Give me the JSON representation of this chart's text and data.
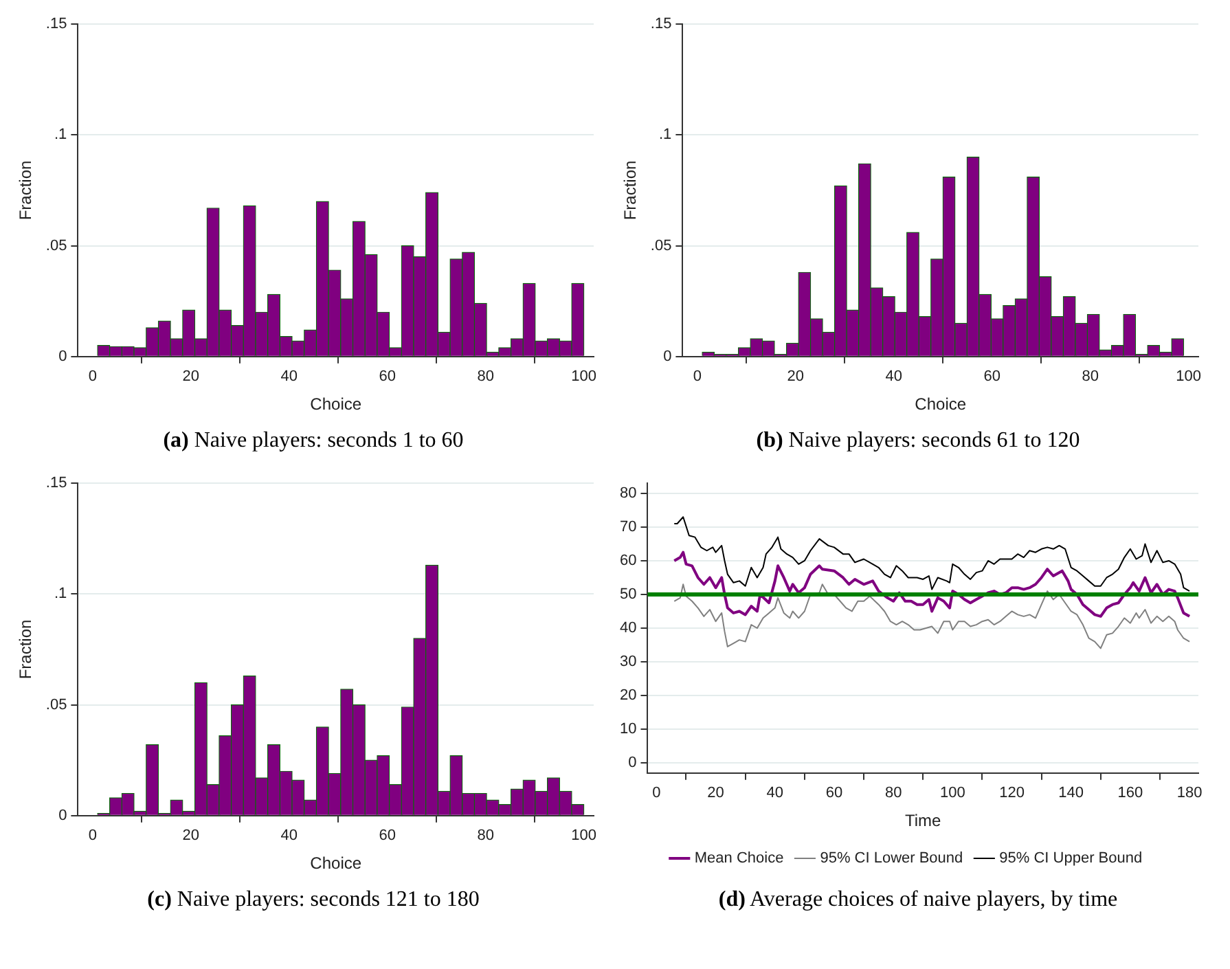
{
  "chart_data": [
    {
      "type": "histogram",
      "title": "(a) Naive players: seconds 1 to 60",
      "xlabel": "Choice",
      "ylabel": "Fraction",
      "bins": [
        1,
        3.475,
        5.95,
        8.425,
        10.9,
        13.375,
        15.85,
        18.325,
        20.8,
        23.275,
        25.75,
        28.225,
        30.7,
        33.175,
        35.65,
        38.125,
        40.6,
        43.075,
        45.55,
        48.025,
        50.5,
        52.975,
        55.45,
        57.925,
        60.4,
        62.875,
        65.35,
        67.825,
        70.3,
        72.775,
        75.25,
        77.725,
        80.2,
        82.675,
        85.15,
        87.625,
        90.1,
        92.575,
        95.05,
        97.525,
        100
      ],
      "values": [
        0.005,
        0.0045,
        0.0045,
        0.004,
        0.013,
        0.016,
        0.008,
        0.021,
        0.008,
        0.067,
        0.021,
        0.014,
        0.068,
        0.02,
        0.028,
        0.009,
        0.007,
        0.012,
        0.07,
        0.039,
        0.026,
        0.061,
        0.046,
        0.02,
        0.004,
        0.05,
        0.045,
        0.074,
        0.011,
        0.044,
        0.047,
        0.024,
        0.002,
        0.004,
        0.008,
        0.033,
        0.007,
        0.008,
        0.007,
        0.033
      ],
      "color": "#800080",
      "xlim": [
        -3,
        102
      ],
      "xticks": [
        0,
        20,
        40,
        60,
        80,
        100
      ],
      "ylim": [
        0,
        0.15
      ],
      "yticks": [
        0,
        {
          "value": 0.05,
          "label": ".05"
        },
        {
          "value": 0.1,
          "label": ".1"
        },
        {
          "value": 0.15,
          "label": ".15"
        }
      ],
      "grid": "y"
    },
    {
      "type": "histogram",
      "title": "(b) Naive players: seconds 61 to 120",
      "xlabel": "Choice",
      "ylabel": "Fraction",
      "bins": [
        1,
        3.45,
        5.9,
        8.35,
        10.8,
        13.25,
        15.7,
        18.15,
        20.6,
        23.05,
        25.5,
        27.95,
        30.4,
        32.85,
        35.3,
        37.75,
        40.2,
        42.65,
        45.1,
        47.55,
        50,
        52.45,
        54.9,
        57.35,
        59.8,
        62.25,
        64.7,
        67.15,
        69.6,
        72.05,
        74.5,
        76.95,
        79.4,
        81.85,
        84.3,
        86.75,
        89.2,
        91.65,
        94.1,
        96.55,
        99
      ],
      "values": [
        0.002,
        0.001,
        0.001,
        0.004,
        0.008,
        0.007,
        0.001,
        0.006,
        0.038,
        0.017,
        0.011,
        0.077,
        0.021,
        0.087,
        0.031,
        0.027,
        0.02,
        0.056,
        0.018,
        0.044,
        0.081,
        0.015,
        0.09,
        0.028,
        0.017,
        0.023,
        0.026,
        0.081,
        0.036,
        0.018,
        0.027,
        0.015,
        0.019,
        0.003,
        0.005,
        0.019,
        0.001,
        0.005,
        0.002,
        0.008
      ],
      "color": "#800080",
      "xlim": [
        -3,
        102
      ],
      "xticks": [
        0,
        20,
        40,
        60,
        80,
        100
      ],
      "ylim": [
        0,
        0.15
      ],
      "yticks": [
        0,
        {
          "value": 0.05,
          "label": ".05"
        },
        {
          "value": 0.1,
          "label": ".1"
        },
        {
          "value": 0.15,
          "label": ".15"
        }
      ],
      "grid": "y"
    },
    {
      "type": "histogram",
      "title": "(c) Naive players: seconds 121 to 180",
      "xlabel": "Choice",
      "ylabel": "Fraction",
      "bins": [
        1,
        3.475,
        5.95,
        8.425,
        10.9,
        13.375,
        15.85,
        18.325,
        20.8,
        23.275,
        25.75,
        28.225,
        30.7,
        33.175,
        35.65,
        38.125,
        40.6,
        43.075,
        45.55,
        48.025,
        50.5,
        52.975,
        55.45,
        57.925,
        60.4,
        62.875,
        65.35,
        67.825,
        70.3,
        72.775,
        75.25,
        77.725,
        80.2,
        82.675,
        85.15,
        87.625,
        90.1,
        92.575,
        95.05,
        97.525,
        100
      ],
      "values": [
        0.001,
        0.008,
        0.01,
        0.002,
        0.032,
        0.001,
        0.007,
        0.002,
        0.06,
        0.014,
        0.036,
        0.05,
        0.063,
        0.017,
        0.032,
        0.02,
        0.016,
        0.007,
        0.04,
        0.019,
        0.057,
        0.05,
        0.025,
        0.027,
        0.014,
        0.049,
        0.08,
        0.113,
        0.011,
        0.027,
        0.01,
        0.01,
        0.007,
        0.005,
        0.012,
        0.016,
        0.011,
        0.017,
        0.011,
        0.005
      ],
      "color": "#800080",
      "xlim": [
        -3,
        102
      ],
      "xticks": [
        0,
        20,
        40,
        60,
        80,
        100
      ],
      "ylim": [
        0,
        0.15
      ],
      "yticks": [
        0,
        {
          "value": 0.05,
          "label": ".05"
        },
        {
          "value": 0.1,
          "label": ".1"
        },
        {
          "value": 0.15,
          "label": ".15"
        }
      ],
      "grid": "y"
    },
    {
      "type": "line",
      "title": "(d) Average choices of naive players, by time",
      "xlabel": "Time",
      "xlim": [
        -3,
        183
      ],
      "xticks": [
        0,
        20,
        40,
        60,
        80,
        100,
        120,
        140,
        160,
        180
      ],
      "ylim": [
        -3,
        83
      ],
      "yticks": [
        0,
        10,
        20,
        30,
        40,
        50,
        60,
        70,
        80
      ],
      "grid": "y",
      "legend": "bottom",
      "ref_lines": [
        {
          "axis": "y",
          "value": 50,
          "color": "#008000"
        }
      ],
      "series": [
        {
          "name": "Mean Choice",
          "color": "#800080",
          "x": [
            6,
            8,
            9,
            10,
            12,
            14,
            16,
            18,
            20,
            22,
            23,
            24,
            26,
            28,
            30,
            32,
            34,
            35,
            38,
            40,
            41,
            43,
            45,
            46,
            48,
            50,
            52,
            55,
            56,
            60,
            63,
            65,
            67,
            70,
            73,
            75,
            78,
            80,
            82,
            84,
            86,
            88,
            90,
            92,
            93,
            95,
            97,
            99,
            100,
            102,
            104,
            106,
            108,
            110,
            112,
            114,
            116,
            118,
            120,
            122,
            124,
            126,
            128,
            130,
            132,
            134,
            137,
            139,
            140,
            142,
            144,
            146,
            148,
            150,
            152,
            154,
            156,
            158,
            160,
            161,
            163,
            165,
            167,
            169,
            171,
            173,
            175,
            176,
            178,
            180
          ],
          "values": [
            60,
            61,
            62.5,
            59,
            58.5,
            55,
            53,
            55,
            52,
            55,
            50,
            46,
            44.5,
            45,
            44,
            46.5,
            45,
            50,
            47.5,
            54,
            58.5,
            55,
            51,
            53,
            50.5,
            52,
            56,
            58.5,
            57.5,
            57,
            55,
            53,
            54.5,
            53,
            54,
            51,
            49,
            48,
            50.5,
            48,
            48,
            47,
            47,
            48.5,
            45,
            49,
            48,
            46,
            51,
            50,
            48.5,
            47.5,
            48.5,
            49.5,
            50.5,
            51,
            50,
            50.5,
            52,
            52,
            51.5,
            52,
            53,
            55,
            57.5,
            55.5,
            57,
            54,
            51.5,
            50,
            47,
            45.5,
            44,
            43.5,
            46,
            47,
            47.5,
            50,
            52,
            53.5,
            51,
            55,
            50.5,
            53,
            50,
            51.5,
            51,
            49,
            44.5,
            43.5
          ]
        },
        {
          "name": "95% CI Lower Bound",
          "color": "#808080",
          "x": [
            6,
            8,
            9,
            10,
            12,
            14,
            16,
            18,
            20,
            22,
            23,
            24,
            26,
            28,
            30,
            32,
            34,
            36,
            38,
            40,
            41,
            43,
            45,
            46,
            48,
            50,
            52,
            55,
            56,
            58,
            60,
            62,
            64,
            66,
            68,
            70,
            72,
            75,
            77,
            79,
            81,
            83,
            85,
            87,
            89,
            91,
            93,
            95,
            97,
            99,
            100,
            102,
            104,
            106,
            108,
            110,
            112,
            114,
            116,
            118,
            120,
            122,
            124,
            126,
            128,
            130,
            132,
            134,
            136,
            138,
            140,
            142,
            144,
            146,
            148,
            150,
            152,
            154,
            156,
            158,
            160,
            162,
            163,
            165,
            167,
            169,
            171,
            173,
            175,
            176,
            178,
            180
          ],
          "values": [
            48,
            49,
            53,
            49.5,
            48,
            46,
            43.5,
            45.5,
            42,
            44.5,
            39,
            34.5,
            35.5,
            36.5,
            36,
            41,
            40,
            43,
            44.5,
            46,
            49,
            44.5,
            43,
            45,
            43,
            45,
            50,
            50.5,
            53,
            50,
            50,
            48,
            46,
            45,
            48,
            48,
            49.5,
            47,
            45,
            42,
            41,
            42,
            41,
            39.5,
            39.5,
            40,
            40.5,
            38.5,
            42,
            42,
            39.5,
            42,
            42,
            40.5,
            41,
            42,
            42.5,
            41,
            42,
            43.5,
            45,
            44,
            43.5,
            44,
            43,
            47,
            51,
            48.5,
            50,
            47.5,
            45,
            44,
            41,
            37,
            36,
            34,
            38,
            38.5,
            40.5,
            43,
            41.5,
            44.5,
            43,
            45.5,
            41.5,
            43.5,
            42,
            43.5,
            42,
            39.5,
            37,
            36
          ]
        },
        {
          "name": "95% CI Upper Bound",
          "color": "#000000",
          "x": [
            6,
            7,
            9,
            11,
            13,
            15,
            17,
            19,
            20,
            22,
            23,
            24,
            26,
            28,
            30,
            32,
            34,
            36,
            37,
            39,
            41,
            42,
            44,
            46,
            48,
            50,
            52,
            55,
            58,
            60,
            63,
            65,
            67,
            70,
            73,
            75,
            77,
            79,
            81,
            83,
            85,
            88,
            90,
            92,
            93,
            95,
            98,
            99,
            100,
            102,
            104,
            106,
            108,
            110,
            112,
            114,
            116,
            118,
            120,
            122,
            124,
            126,
            128,
            130,
            132,
            134,
            136,
            138,
            140,
            142,
            144,
            146,
            148,
            150,
            152,
            154,
            156,
            158,
            160,
            162,
            164,
            165,
            167,
            169,
            171,
            173,
            175,
            177,
            178,
            180
          ],
          "values": [
            71,
            71,
            73,
            67.5,
            67,
            64,
            63,
            64,
            62.5,
            64.5,
            60,
            56,
            53.5,
            54,
            52.5,
            58,
            55,
            58,
            62,
            64,
            67,
            63.5,
            62,
            61,
            59,
            60,
            63,
            66.5,
            64.5,
            64,
            62,
            62,
            59.5,
            60.5,
            59,
            58,
            56,
            55,
            58.5,
            57,
            55,
            55,
            54.5,
            55.5,
            51.5,
            55,
            54,
            53.5,
            59,
            58,
            56,
            54.5,
            56.5,
            57,
            60,
            59,
            60.5,
            60.5,
            60.5,
            62,
            61,
            63,
            62.5,
            63.5,
            64,
            63.5,
            64.5,
            63.5,
            58,
            57,
            55.5,
            54,
            52.5,
            52.5,
            55,
            56,
            57.5,
            61,
            63.5,
            60.5,
            61.5,
            65,
            59.5,
            63,
            59.5,
            60,
            59,
            56,
            52,
            51
          ]
        }
      ]
    }
  ]
}
